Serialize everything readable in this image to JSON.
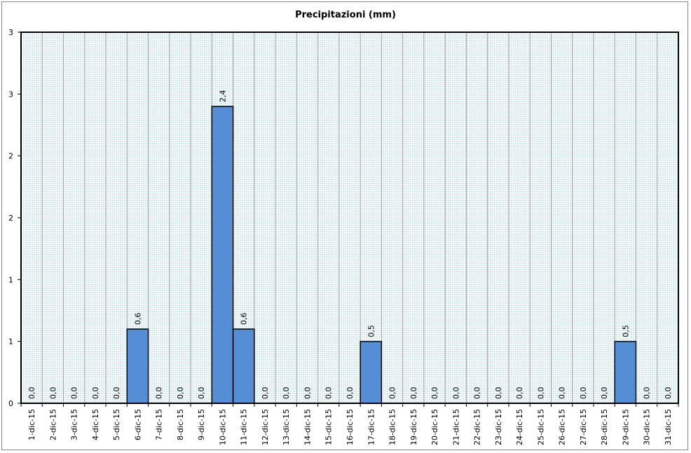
{
  "chart_data": {
    "type": "bar",
    "title": "Precipitazioni (mm)",
    "xlabel": "",
    "ylabel": "",
    "categories": [
      "1-dic-15",
      "2-dic-15",
      "3-dic-15",
      "4-dic-15",
      "5-dic-15",
      "6-dic-15",
      "7-dic-15",
      "8-dic-15",
      "9-dic-15",
      "10-dic-15",
      "11-dic-15",
      "12-dic-15",
      "13-dic-15",
      "14-dic-15",
      "15-dic-15",
      "16-dic-15",
      "17-dic-15",
      "18-dic-15",
      "19-dic-15",
      "20-dic-15",
      "21-dic-15",
      "22-dic-15",
      "23-dic-15",
      "24-dic-15",
      "25-dic-15",
      "26-dic-15",
      "27-dic-15",
      "28-dic-15",
      "29-dic-15",
      "30-dic-15",
      "31-dic-15"
    ],
    "values": [
      0,
      0,
      0,
      0,
      0,
      0.6,
      0,
      0,
      0,
      2.4,
      0.6,
      0,
      0,
      0,
      0,
      0,
      0.5,
      0,
      0,
      0,
      0,
      0,
      0,
      0,
      0,
      0,
      0,
      0,
      0.5,
      0,
      0
    ],
    "data_labels": [
      "0,0",
      "0,0",
      "0,0",
      "0,0",
      "0,0",
      "0,6",
      "0,0",
      "0,0",
      "0,0",
      "2,4",
      "0,6",
      "0,0",
      "0,0",
      "0,0",
      "0,0",
      "0,0",
      "0,5",
      "0,0",
      "0,0",
      "0,0",
      "0,0",
      "0,0",
      "0,0",
      "0,0",
      "0,0",
      "0,0",
      "0,0",
      "0,0",
      "0,5",
      "0,0",
      "0,0"
    ],
    "ylim": [
      0,
      3
    ],
    "y_tick_labels": [
      "0",
      "1",
      "1",
      "2",
      "2",
      "3",
      "3"
    ],
    "grid": true,
    "legend": "none",
    "colors": {
      "bar_fill": "#558ED5",
      "bar_stroke": "#000000",
      "plot_background": "#DDEFF2"
    }
  }
}
